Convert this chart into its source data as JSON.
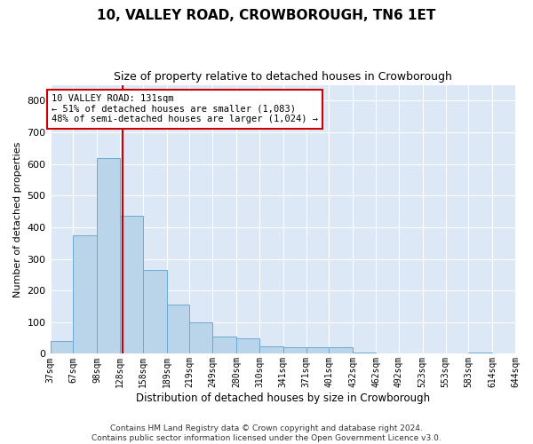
{
  "title_line1": "10, VALLEY ROAD, CROWBOROUGH, TN6 1ET",
  "title_line2": "Size of property relative to detached houses in Crowborough",
  "xlabel": "Distribution of detached houses by size in Crowborough",
  "ylabel": "Number of detached properties",
  "annotation_title": "10 VALLEY ROAD: 131sqm",
  "annotation_line2": "← 51% of detached houses are smaller (1,083)",
  "annotation_line3": "48% of semi-detached houses are larger (1,024) →",
  "bar_color": "#bad4ea",
  "bar_edge_color": "#6aaad4",
  "marker_line_color": "#cc0000",
  "marker_value": 131,
  "bin_edges": [
    37,
    67,
    98,
    128,
    158,
    189,
    219,
    249,
    280,
    310,
    341,
    371,
    401,
    432,
    462,
    492,
    523,
    553,
    583,
    614,
    644
  ],
  "bar_heights": [
    40,
    375,
    620,
    435,
    265,
    155,
    100,
    55,
    50,
    25,
    20,
    20,
    20,
    5,
    0,
    0,
    0,
    0,
    5,
    0
  ],
  "ylim": [
    0,
    850
  ],
  "yticks": [
    0,
    100,
    200,
    300,
    400,
    500,
    600,
    700,
    800
  ],
  "background_color": "#dce8f5",
  "grid_color": "#ffffff",
  "footer_line1": "Contains HM Land Registry data © Crown copyright and database right 2024.",
  "footer_line2": "Contains public sector information licensed under the Open Government Licence v3.0."
}
